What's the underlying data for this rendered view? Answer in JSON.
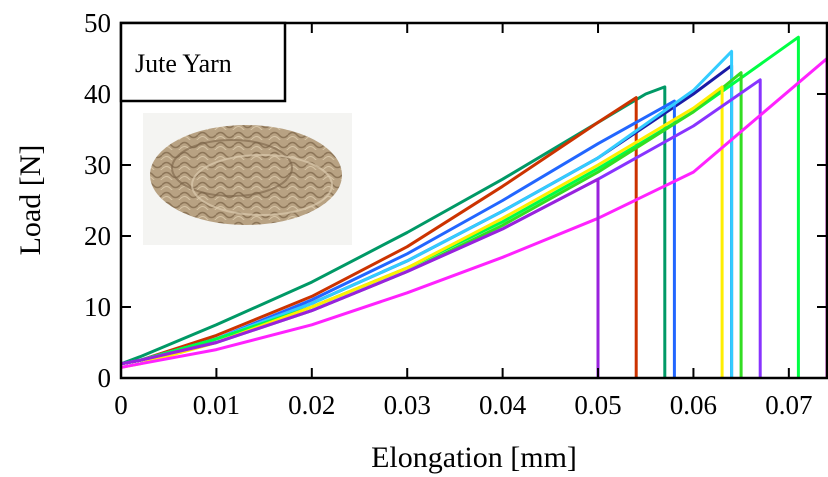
{
  "chart_data": {
    "type": "line",
    "title": "",
    "xlabel": "Elongation [mm]",
    "ylabel": "Load [N]",
    "xlim": [
      0,
      0.074
    ],
    "ylim": [
      0,
      50
    ],
    "xticks": [
      0,
      0.01,
      0.02,
      0.03,
      0.04,
      0.05,
      0.06,
      0.07
    ],
    "xtick_labels": [
      "0",
      "0.01",
      "0.02",
      "0.03",
      "0.04",
      "0.05",
      "0.06",
      "0.07"
    ],
    "yticks": [
      0,
      10,
      20,
      30,
      40,
      50
    ],
    "ytick_labels": [
      "0",
      "10",
      "20",
      "30",
      "40",
      "50"
    ],
    "grid": false,
    "annotation": "Jute Yarn",
    "inset_photo": "jute-yarn-bundle",
    "series": [
      {
        "color": "#009966",
        "x": [
          0,
          0.002,
          0.01,
          0.02,
          0.03,
          0.04,
          0.05,
          0.055,
          0.057
        ],
        "y": [
          2,
          3,
          7.5,
          13.5,
          20.5,
          28,
          36,
          40,
          41
        ],
        "break_x": 0.057
      },
      {
        "color": "#cc3300",
        "x": [
          0,
          0.002,
          0.01,
          0.02,
          0.03,
          0.04,
          0.05,
          0.054
        ],
        "y": [
          2,
          2.5,
          6,
          11.5,
          18.5,
          27,
          36,
          39.5
        ],
        "break_x": 0.054
      },
      {
        "color": "#1a1aa6",
        "x": [
          0,
          0.002,
          0.01,
          0.02,
          0.03,
          0.04,
          0.05,
          0.06,
          0.064
        ],
        "y": [
          2,
          2.5,
          5.5,
          10.5,
          16.5,
          23.5,
          31,
          40,
          44
        ],
        "break_x": 0.064
      },
      {
        "color": "#2266ff",
        "x": [
          0,
          0.002,
          0.01,
          0.02,
          0.03,
          0.04,
          0.05,
          0.058
        ],
        "y": [
          2,
          2.5,
          5.5,
          11,
          17.5,
          25,
          33,
          39
        ],
        "break_x": 0.058
      },
      {
        "color": "#33ccff",
        "x": [
          0,
          0.002,
          0.01,
          0.02,
          0.03,
          0.04,
          0.05,
          0.06,
          0.064
        ],
        "y": [
          2,
          2.5,
          5.5,
          10.5,
          16.5,
          23.5,
          31,
          40.5,
          46
        ],
        "break_x": 0.064
      },
      {
        "color": "#00ff44",
        "x": [
          0,
          0.002,
          0.01,
          0.02,
          0.03,
          0.04,
          0.05,
          0.06,
          0.071
        ],
        "y": [
          2,
          2.5,
          5.5,
          10,
          15.5,
          22,
          29.5,
          37.5,
          48
        ],
        "break_x": 0.071
      },
      {
        "color": "#33dd22",
        "x": [
          0,
          0.002,
          0.01,
          0.02,
          0.03,
          0.04,
          0.05,
          0.06,
          0.065
        ],
        "y": [
          2,
          2.5,
          5,
          9.5,
          15,
          21.5,
          29,
          37.5,
          43
        ],
        "break_x": 0.065
      },
      {
        "color": "#ffee00",
        "x": [
          0,
          0.002,
          0.01,
          0.02,
          0.03,
          0.04,
          0.05,
          0.06,
          0.063
        ],
        "y": [
          1.5,
          2,
          5,
          10,
          15.5,
          22.5,
          30,
          38,
          41
        ],
        "break_x": 0.063
      },
      {
        "color": "#8833ff",
        "x": [
          0,
          0.002,
          0.01,
          0.02,
          0.03,
          0.04,
          0.05,
          0.06,
          0.067
        ],
        "y": [
          2,
          2.5,
          5,
          9.5,
          15,
          21,
          28,
          35.5,
          42
        ],
        "break_x": 0.067
      },
      {
        "color": "#ff22ff",
        "x": [
          0,
          0.002,
          0.01,
          0.02,
          0.03,
          0.04,
          0.05,
          0.06,
          0.074
        ],
        "y": [
          1.5,
          2,
          4,
          7.5,
          12,
          17,
          22.5,
          29,
          45
        ],
        "break_x": 0.074
      },
      {
        "color": "#9922dd",
        "x": [
          0,
          0.002,
          0.01,
          0.02,
          0.03,
          0.04,
          0.05
        ],
        "y": [
          2,
          2.5,
          5,
          9.5,
          15,
          21,
          28
        ],
        "break_x": 0.05
      }
    ]
  }
}
